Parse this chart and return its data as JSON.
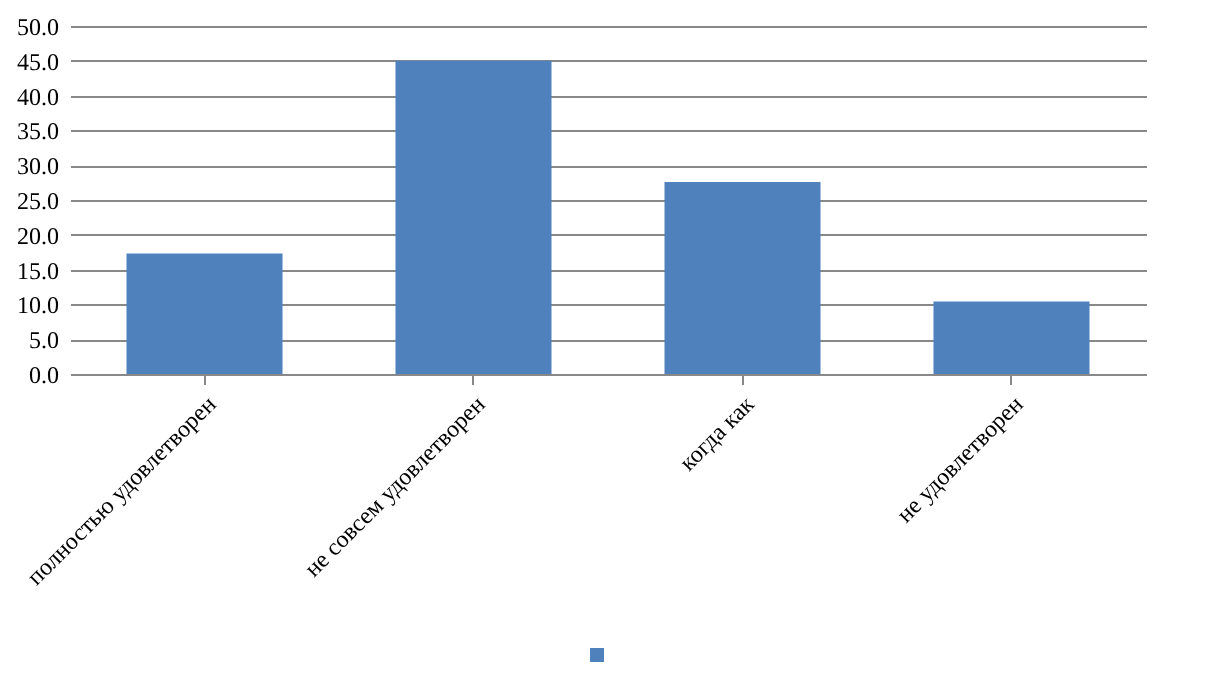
{
  "chart_data": {
    "type": "bar",
    "categories": [
      "полностью удовлетворен",
      "не совсем удовлетворен",
      "когда как",
      "не удовлетворен"
    ],
    "series": [
      {
        "color": "#4f81bd",
        "values": [
          17.3,
          45.0,
          27.6,
          10.4
        ]
      }
    ],
    "ylim": [
      0,
      50
    ],
    "yticks": [
      {
        "value": 0,
        "label": "0.0"
      },
      {
        "value": 5,
        "label": "5.0"
      },
      {
        "value": 10,
        "label": "10.0"
      },
      {
        "value": 15,
        "label": "15.0"
      },
      {
        "value": 20,
        "label": "20.0"
      },
      {
        "value": 25,
        "label": "25.0"
      },
      {
        "value": 30,
        "label": "30.0"
      },
      {
        "value": 35,
        "label": "35.0"
      },
      {
        "value": 40,
        "label": "40.0"
      },
      {
        "value": 45,
        "label": "45.0"
      },
      {
        "value": 50,
        "label": "50.0"
      }
    ],
    "grid": "y"
  }
}
